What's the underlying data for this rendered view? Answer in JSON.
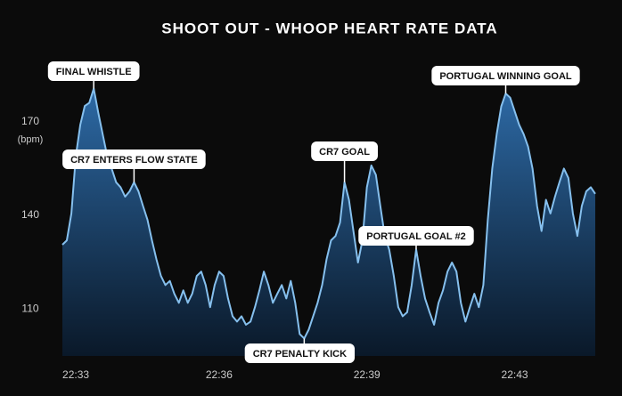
{
  "chart_data": {
    "type": "area",
    "title": "SHOOT OUT -  WHOOP HEART RATE DATA",
    "y_label": "(bpm)",
    "color": "#86c0ee",
    "values": [
      130.6,
      132,
      140.6,
      159,
      169,
      175,
      176,
      180.6,
      173,
      166,
      159,
      155,
      150.6,
      149,
      146,
      147.7,
      150.6,
      147.7,
      143,
      138.6,
      132,
      126,
      120.6,
      117.7,
      119,
      114.9,
      112,
      116,
      112,
      114.9,
      120.6,
      122,
      117.7,
      110.6,
      117.7,
      122,
      120.6,
      113.4,
      107.7,
      106,
      107.7,
      105,
      106,
      110.6,
      116,
      122,
      117.7,
      112,
      114.9,
      117.7,
      113.4,
      119,
      112,
      102,
      100.6,
      103.4,
      107.7,
      112,
      117.7,
      126,
      132,
      133.4,
      137.7,
      150.6,
      145,
      135,
      124.9,
      132,
      149,
      156,
      153,
      143,
      133.4,
      129,
      120.6,
      110.6,
      107.7,
      109,
      117.7,
      129.1,
      120.6,
      113.4,
      109,
      105,
      112,
      116,
      122,
      124.9,
      122,
      112,
      106,
      110.6,
      114.9,
      110.6,
      117.7,
      138.6,
      155,
      166,
      174.9,
      179,
      177.7,
      173.4,
      169,
      166,
      162,
      155,
      143,
      135,
      145,
      140.6,
      146,
      150.6,
      155,
      152,
      140.6,
      133.4,
      143,
      147.7,
      149,
      146.9
    ],
    "xlim": [
      0,
      119
    ],
    "xticks": [
      {
        "value": 3,
        "label": "22:33"
      },
      {
        "value": 35,
        "label": "22:36"
      },
      {
        "value": 68,
        "label": "22:39"
      },
      {
        "value": 101,
        "label": "22:43"
      }
    ],
    "ylim": [
      95,
      189
    ],
    "yticks": [
      110,
      140,
      170
    ],
    "annotations": [
      {
        "text": "FINAL WHISTLE",
        "x": 7
      },
      {
        "text": "CR7 ENTERS FLOW STATE",
        "x": 16
      },
      {
        "text": "CR7 GOAL",
        "x": 63
      },
      {
        "text": "PORTUGAL GOAL #2",
        "x": 79
      },
      {
        "text": "PORTUGAL WINNING GOAL",
        "x": 99
      },
      {
        "text": "CR7 PENALTY KICK",
        "x": 54
      }
    ]
  }
}
